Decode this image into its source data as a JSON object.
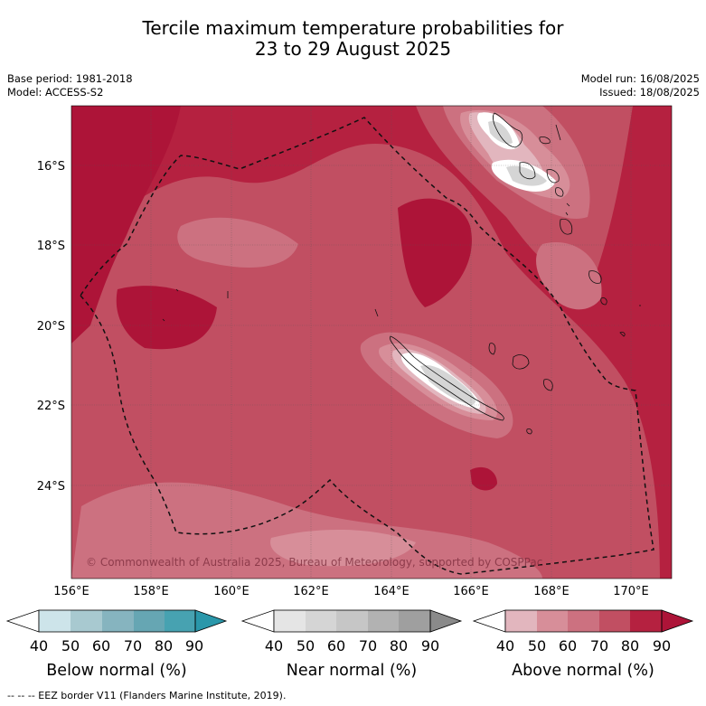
{
  "title": {
    "line1": "Tercile maximum temperature probabilities for",
    "line2": "23 to 29 August 2025"
  },
  "meta": {
    "base_period": "Base period: 1981-2018",
    "model": "Model: ACCESS-S2",
    "model_run": "Model run: 16/08/2025",
    "issued": "Issued: 18/08/2025"
  },
  "map": {
    "lat_labels": [
      "16°S",
      "18°S",
      "20°S",
      "22°S",
      "24°S"
    ],
    "lon_labels": [
      "156°E",
      "158°E",
      "160°E",
      "162°E",
      "164°E",
      "166°E",
      "168°E",
      "170°E"
    ],
    "copyright": "© Commonwealth of Australia 2025, Bureau of Meteorology, supported by COSPPac",
    "background_color": "#b52140"
  },
  "colorbars": [
    {
      "title": "Below normal (%)",
      "ticks": [
        "40",
        "50",
        "60",
        "70",
        "80",
        "90"
      ],
      "colors": [
        "#ffffff",
        "#cde4ea",
        "#a8c9d0",
        "#86b4bf",
        "#66a6b3",
        "#47a2b1",
        "#2a97aa"
      ]
    },
    {
      "title": "Near normal (%)",
      "ticks": [
        "40",
        "50",
        "60",
        "70",
        "80",
        "90"
      ],
      "colors": [
        "#ffffff",
        "#e5e5e5",
        "#d5d5d5",
        "#c6c6c6",
        "#b2b2b2",
        "#9f9f9f",
        "#8a8a8a"
      ]
    },
    {
      "title": "Above normal (%)",
      "ticks": [
        "40",
        "50",
        "60",
        "70",
        "80",
        "90"
      ],
      "colors": [
        "#ffffff",
        "#e2b6be",
        "#d78e99",
        "#cc7180",
        "#c14f62",
        "#b52140",
        "#ad1438"
      ]
    }
  ],
  "footnote": "--  --  -- EEZ border V11 (Flanders Marine Institute, 2019)."
}
